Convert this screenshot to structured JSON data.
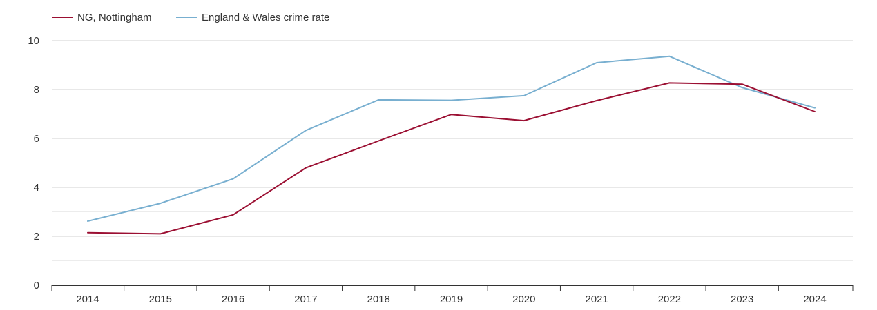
{
  "chart_data": {
    "type": "line",
    "title": "",
    "xlabel": "",
    "ylabel": "",
    "categories": [
      "2014",
      "2015",
      "2016",
      "2017",
      "2018",
      "2019",
      "2020",
      "2021",
      "2022",
      "2023",
      "2024"
    ],
    "series": [
      {
        "name": "NG, Nottingham",
        "color": "#9b0f32",
        "values": [
          2.15,
          2.1,
          2.88,
          4.8,
          5.9,
          6.98,
          6.73,
          7.55,
          8.27,
          8.22,
          7.1
        ]
      },
      {
        "name": "England & Wales crime rate",
        "color": "#78afd0",
        "values": [
          2.62,
          3.35,
          4.35,
          6.33,
          7.58,
          7.56,
          7.75,
          9.1,
          9.36,
          8.08,
          7.25
        ]
      }
    ],
    "ylim": [
      0,
      10
    ],
    "yticks": [
      "0",
      "2",
      "4",
      "6",
      "8",
      "10"
    ],
    "grid": true,
    "legend_position": "top-left"
  }
}
